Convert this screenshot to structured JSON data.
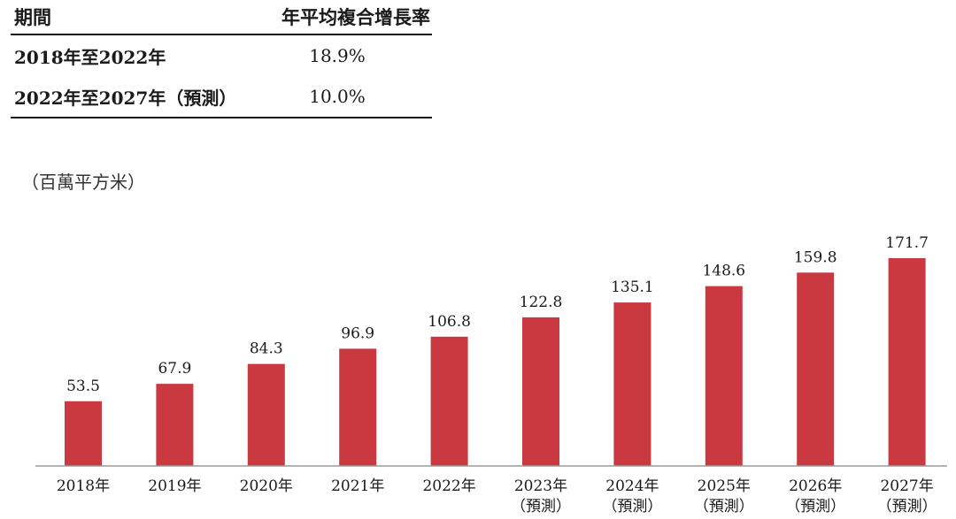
{
  "cagr_table": {
    "header": {
      "period": "期間",
      "rate": "年平均複合增長率"
    },
    "rows": [
      {
        "period": "2018年至2022年",
        "rate": "18.9%"
      },
      {
        "period": "2022年至2027年（預測）",
        "rate": "10.0%"
      }
    ]
  },
  "chart_data": {
    "type": "bar",
    "title": "",
    "ylabel": "（百萬平方米）",
    "xlabel": "",
    "categories": [
      "2018年",
      "2019年",
      "2020年",
      "2021年",
      "2022年",
      "2023年",
      "2024年",
      "2025年",
      "2026年",
      "2027年"
    ],
    "category_notes": [
      "",
      "",
      "",
      "",
      "",
      "（預測）",
      "（預測）",
      "（預測）",
      "（預測）",
      "（預測）"
    ],
    "values": [
      53.5,
      67.9,
      84.3,
      96.9,
      106.8,
      122.8,
      135.1,
      148.6,
      159.8,
      171.7
    ],
    "value_labels": [
      "53.5",
      "67.9",
      "84.3",
      "96.9",
      "106.8",
      "122.8",
      "135.1",
      "148.6",
      "159.8",
      "171.7"
    ],
    "ylim": [
      0,
      171.7
    ],
    "grid": false,
    "legend": "none",
    "bar_color": "#c9393f"
  }
}
